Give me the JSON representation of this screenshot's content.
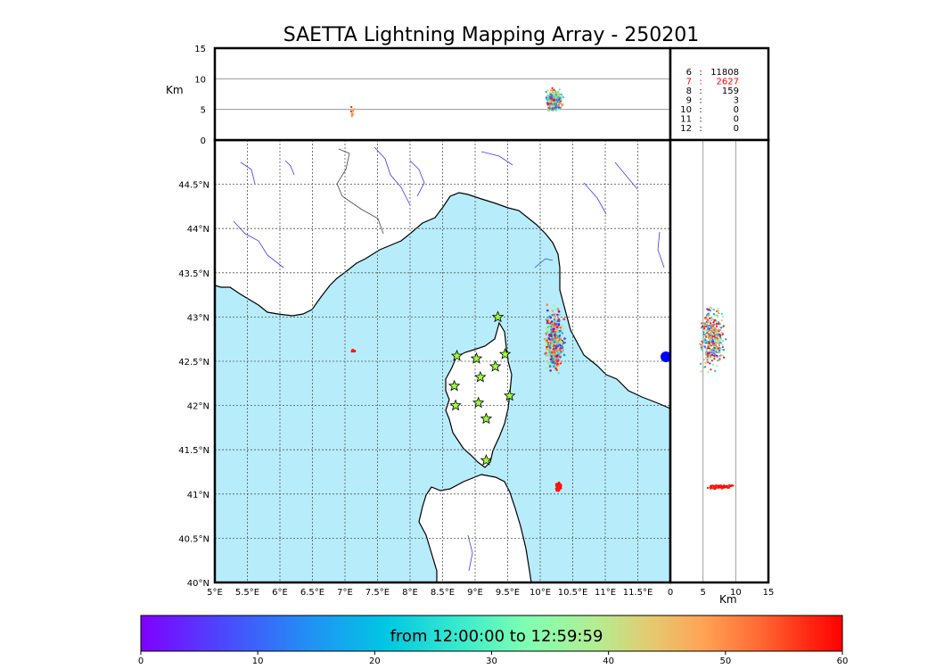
{
  "title": "SAETTA Lightning Mapping Array - 250201",
  "colorbar": {
    "label": "from 12:00:00 to 12:59:59",
    "ticks": [
      "0",
      "10",
      "20",
      "30",
      "40",
      "50",
      "60"
    ],
    "range": [
      0,
      60
    ],
    "colors": [
      "#7f00ff",
      "#4a4afc",
      "#1e96f3",
      "#00c7e3",
      "#3ceccc",
      "#7fffb1",
      "#b4ed92",
      "#e6c86f",
      "#ffa455",
      "#ff6b34",
      "#ff2a14",
      "#ff0000"
    ]
  },
  "chart_data": [
    {
      "type": "scatter",
      "name_key": "plan-view",
      "xlabel": "",
      "ylabel": "",
      "xlim": [
        5.0,
        12.0
      ],
      "ylim": [
        40.0,
        45.0
      ],
      "x_ticks": [
        "5°E",
        "5.5°E",
        "6°E",
        "6.5°E",
        "7°E",
        "7.5°E",
        "8°E",
        "8.5°E",
        "9°E",
        "9.5°E",
        "10°E",
        "10.5°E",
        "11°E",
        "11.5°E"
      ],
      "y_ticks": [
        "40°N",
        "40.5°N",
        "41°N",
        "41.5°N",
        "42°N",
        "42.5°N",
        "43°N",
        "43.5°N",
        "44°N",
        "44.5°N"
      ],
      "grid": true,
      "stations": [
        {
          "lon": 9.35,
          "lat": 43.0
        },
        {
          "lon": 8.72,
          "lat": 42.56
        },
        {
          "lon": 9.02,
          "lat": 42.53
        },
        {
          "lon": 9.46,
          "lat": 42.58
        },
        {
          "lon": 9.31,
          "lat": 42.44
        },
        {
          "lon": 9.08,
          "lat": 42.32
        },
        {
          "lon": 8.68,
          "lat": 42.22
        },
        {
          "lon": 9.53,
          "lat": 42.11
        },
        {
          "lon": 8.7,
          "lat": 42.0
        },
        {
          "lon": 9.05,
          "lat": 42.03
        },
        {
          "lon": 9.17,
          "lat": 41.85
        },
        {
          "lon": 9.17,
          "lat": 41.38
        }
      ],
      "clusters": [
        {
          "lon": 10.22,
          "lat": 42.72,
          "dlon": 0.18,
          "dlat": 0.45,
          "tmin": 0,
          "tmax": 60,
          "n": 420
        },
        {
          "lon": 10.28,
          "lat": 41.08,
          "dlon": 0.05,
          "dlat": 0.07,
          "tmin": 56,
          "tmax": 60,
          "n": 60
        },
        {
          "lon": 7.12,
          "lat": 42.62,
          "dlon": 0.04,
          "dlat": 0.02,
          "tmin": 55,
          "tmax": 60,
          "n": 10
        }
      ]
    },
    {
      "type": "scatter",
      "name_key": "lon-alt",
      "xlabel": "",
      "ylabel": "Km",
      "xlim": [
        5.0,
        12.0
      ],
      "ylim": [
        0,
        15
      ],
      "y_ticks": [
        "0",
        "5",
        "10",
        "15"
      ],
      "clusters": [
        {
          "x": 10.22,
          "alt": 6.5,
          "dx": 0.15,
          "dalt": 2.2,
          "tmin": 0,
          "tmax": 60,
          "n": 380
        },
        {
          "x": 7.12,
          "alt": 4.5,
          "dx": 0.04,
          "dalt": 1.2,
          "tmin": 40,
          "tmax": 60,
          "n": 12
        }
      ]
    },
    {
      "type": "scatter",
      "name_key": "alt-lat",
      "xlabel": "Km",
      "ylabel": "",
      "xlim": [
        0,
        15
      ],
      "ylim": [
        40.0,
        45.0
      ],
      "x_ticks": [
        "0",
        "5",
        "10",
        "15"
      ],
      "clusters": [
        {
          "alt": 6.5,
          "y": 42.75,
          "dalt": 2.2,
          "dy": 0.45,
          "tmin": 0,
          "tmax": 60,
          "n": 420
        },
        {
          "alt": 7.5,
          "y": 41.08,
          "dalt": 2.5,
          "dy": 0.03,
          "tmin": 55,
          "tmax": 60,
          "n": 80
        }
      ]
    },
    {
      "type": "histogram",
      "name_key": "altitude-counts",
      "rows": [
        {
          "alt": "6",
          "count": "11808",
          "color": "#000000"
        },
        {
          "alt": "7",
          "count": "2627",
          "color": "#ff0000"
        },
        {
          "alt": "8",
          "count": "159",
          "color": "#000000"
        },
        {
          "alt": "9",
          "count": "3",
          "color": "#000000"
        },
        {
          "alt": "10",
          "count": "0",
          "color": "#000000"
        },
        {
          "alt": "11",
          "count": "0",
          "color": "#000000"
        },
        {
          "alt": "12",
          "count": "0",
          "color": "#000000"
        }
      ]
    }
  ],
  "colors": {
    "sea": "#b7ecfb",
    "land": "#ffffff",
    "coast": "#000000",
    "rivers": "#3b3bff",
    "grid": "#555555",
    "station_fill": "#9cff3c"
  }
}
